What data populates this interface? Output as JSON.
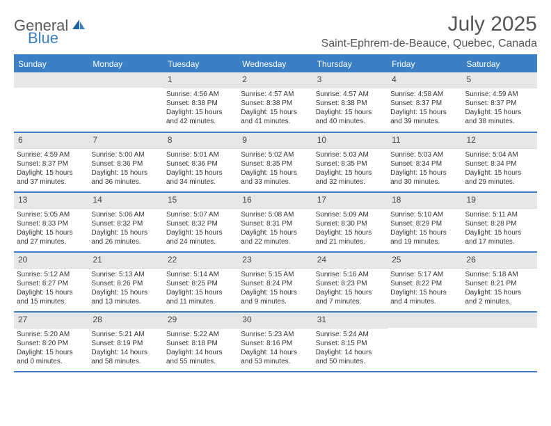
{
  "logo": {
    "general": "General",
    "blue": "Blue"
  },
  "title": "July 2025",
  "location": "Saint-Ephrem-de-Beauce, Quebec, Canada",
  "colors": {
    "accent": "#3b7fc4",
    "headerBg": "#3b7fc4",
    "headerText": "#ffffff",
    "dayNumBg": "#e6e7e8",
    "textColor": "#333333",
    "titleColor": "#555555"
  },
  "dayHeaders": [
    "Sunday",
    "Monday",
    "Tuesday",
    "Wednesday",
    "Thursday",
    "Friday",
    "Saturday"
  ],
  "weeks": [
    [
      null,
      null,
      {
        "n": "1",
        "sr": "Sunrise: 4:56 AM",
        "ss": "Sunset: 8:38 PM",
        "d1": "Daylight: 15 hours",
        "d2": "and 42 minutes."
      },
      {
        "n": "2",
        "sr": "Sunrise: 4:57 AM",
        "ss": "Sunset: 8:38 PM",
        "d1": "Daylight: 15 hours",
        "d2": "and 41 minutes."
      },
      {
        "n": "3",
        "sr": "Sunrise: 4:57 AM",
        "ss": "Sunset: 8:38 PM",
        "d1": "Daylight: 15 hours",
        "d2": "and 40 minutes."
      },
      {
        "n": "4",
        "sr": "Sunrise: 4:58 AM",
        "ss": "Sunset: 8:37 PM",
        "d1": "Daylight: 15 hours",
        "d2": "and 39 minutes."
      },
      {
        "n": "5",
        "sr": "Sunrise: 4:59 AM",
        "ss": "Sunset: 8:37 PM",
        "d1": "Daylight: 15 hours",
        "d2": "and 38 minutes."
      }
    ],
    [
      {
        "n": "6",
        "sr": "Sunrise: 4:59 AM",
        "ss": "Sunset: 8:37 PM",
        "d1": "Daylight: 15 hours",
        "d2": "and 37 minutes."
      },
      {
        "n": "7",
        "sr": "Sunrise: 5:00 AM",
        "ss": "Sunset: 8:36 PM",
        "d1": "Daylight: 15 hours",
        "d2": "and 36 minutes."
      },
      {
        "n": "8",
        "sr": "Sunrise: 5:01 AM",
        "ss": "Sunset: 8:36 PM",
        "d1": "Daylight: 15 hours",
        "d2": "and 34 minutes."
      },
      {
        "n": "9",
        "sr": "Sunrise: 5:02 AM",
        "ss": "Sunset: 8:35 PM",
        "d1": "Daylight: 15 hours",
        "d2": "and 33 minutes."
      },
      {
        "n": "10",
        "sr": "Sunrise: 5:03 AM",
        "ss": "Sunset: 8:35 PM",
        "d1": "Daylight: 15 hours",
        "d2": "and 32 minutes."
      },
      {
        "n": "11",
        "sr": "Sunrise: 5:03 AM",
        "ss": "Sunset: 8:34 PM",
        "d1": "Daylight: 15 hours",
        "d2": "and 30 minutes."
      },
      {
        "n": "12",
        "sr": "Sunrise: 5:04 AM",
        "ss": "Sunset: 8:34 PM",
        "d1": "Daylight: 15 hours",
        "d2": "and 29 minutes."
      }
    ],
    [
      {
        "n": "13",
        "sr": "Sunrise: 5:05 AM",
        "ss": "Sunset: 8:33 PM",
        "d1": "Daylight: 15 hours",
        "d2": "and 27 minutes."
      },
      {
        "n": "14",
        "sr": "Sunrise: 5:06 AM",
        "ss": "Sunset: 8:32 PM",
        "d1": "Daylight: 15 hours",
        "d2": "and 26 minutes."
      },
      {
        "n": "15",
        "sr": "Sunrise: 5:07 AM",
        "ss": "Sunset: 8:32 PM",
        "d1": "Daylight: 15 hours",
        "d2": "and 24 minutes."
      },
      {
        "n": "16",
        "sr": "Sunrise: 5:08 AM",
        "ss": "Sunset: 8:31 PM",
        "d1": "Daylight: 15 hours",
        "d2": "and 22 minutes."
      },
      {
        "n": "17",
        "sr": "Sunrise: 5:09 AM",
        "ss": "Sunset: 8:30 PM",
        "d1": "Daylight: 15 hours",
        "d2": "and 21 minutes."
      },
      {
        "n": "18",
        "sr": "Sunrise: 5:10 AM",
        "ss": "Sunset: 8:29 PM",
        "d1": "Daylight: 15 hours",
        "d2": "and 19 minutes."
      },
      {
        "n": "19",
        "sr": "Sunrise: 5:11 AM",
        "ss": "Sunset: 8:28 PM",
        "d1": "Daylight: 15 hours",
        "d2": "and 17 minutes."
      }
    ],
    [
      {
        "n": "20",
        "sr": "Sunrise: 5:12 AM",
        "ss": "Sunset: 8:27 PM",
        "d1": "Daylight: 15 hours",
        "d2": "and 15 minutes."
      },
      {
        "n": "21",
        "sr": "Sunrise: 5:13 AM",
        "ss": "Sunset: 8:26 PM",
        "d1": "Daylight: 15 hours",
        "d2": "and 13 minutes."
      },
      {
        "n": "22",
        "sr": "Sunrise: 5:14 AM",
        "ss": "Sunset: 8:25 PM",
        "d1": "Daylight: 15 hours",
        "d2": "and 11 minutes."
      },
      {
        "n": "23",
        "sr": "Sunrise: 5:15 AM",
        "ss": "Sunset: 8:24 PM",
        "d1": "Daylight: 15 hours",
        "d2": "and 9 minutes."
      },
      {
        "n": "24",
        "sr": "Sunrise: 5:16 AM",
        "ss": "Sunset: 8:23 PM",
        "d1": "Daylight: 15 hours",
        "d2": "and 7 minutes."
      },
      {
        "n": "25",
        "sr": "Sunrise: 5:17 AM",
        "ss": "Sunset: 8:22 PM",
        "d1": "Daylight: 15 hours",
        "d2": "and 4 minutes."
      },
      {
        "n": "26",
        "sr": "Sunrise: 5:18 AM",
        "ss": "Sunset: 8:21 PM",
        "d1": "Daylight: 15 hours",
        "d2": "and 2 minutes."
      }
    ],
    [
      {
        "n": "27",
        "sr": "Sunrise: 5:20 AM",
        "ss": "Sunset: 8:20 PM",
        "d1": "Daylight: 15 hours",
        "d2": "and 0 minutes."
      },
      {
        "n": "28",
        "sr": "Sunrise: 5:21 AM",
        "ss": "Sunset: 8:19 PM",
        "d1": "Daylight: 14 hours",
        "d2": "and 58 minutes."
      },
      {
        "n": "29",
        "sr": "Sunrise: 5:22 AM",
        "ss": "Sunset: 8:18 PM",
        "d1": "Daylight: 14 hours",
        "d2": "and 55 minutes."
      },
      {
        "n": "30",
        "sr": "Sunrise: 5:23 AM",
        "ss": "Sunset: 8:16 PM",
        "d1": "Daylight: 14 hours",
        "d2": "and 53 minutes."
      },
      {
        "n": "31",
        "sr": "Sunrise: 5:24 AM",
        "ss": "Sunset: 8:15 PM",
        "d1": "Daylight: 14 hours",
        "d2": "and 50 minutes."
      },
      null,
      null
    ]
  ]
}
